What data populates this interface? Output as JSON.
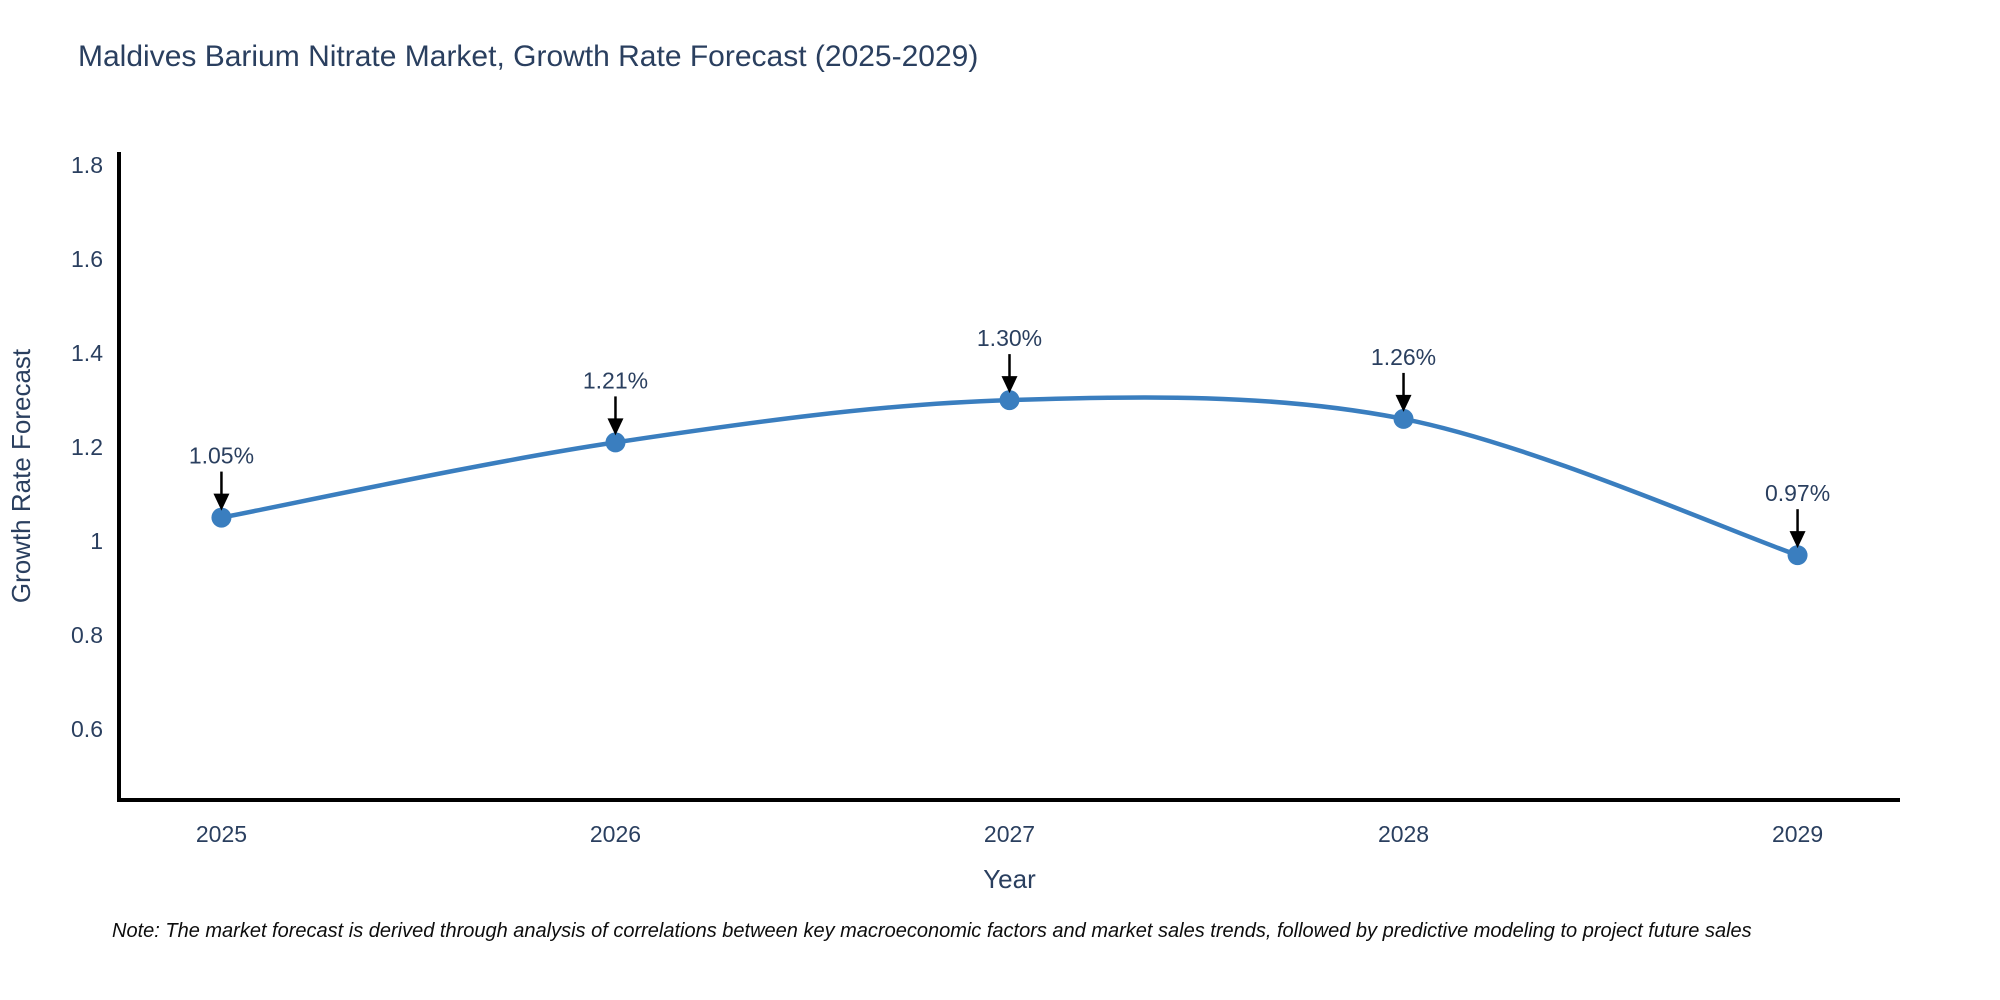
{
  "note": "Note: The market forecast is derived through analysis of correlations between key macroeconomic factors and market sales trends, followed by predictive modeling to project future sales",
  "chart_data": {
    "type": "line",
    "title": "Maldives Barium Nitrate Market, Growth Rate Forecast (2025-2029)",
    "xlabel": "Year",
    "ylabel": "Growth Rate Forecast",
    "categories": [
      "2025",
      "2026",
      "2027",
      "2028",
      "2029"
    ],
    "values": [
      1.05,
      1.21,
      1.3,
      1.26,
      0.97
    ],
    "point_labels": [
      "1.05%",
      "1.21%",
      "1.30%",
      "1.26%",
      "0.97%"
    ],
    "yticks": [
      1.8,
      1.6,
      1.4,
      1.2,
      1.0,
      0.8,
      0.6
    ],
    "ytick_labels": [
      "1.8",
      "1.6",
      "1.4",
      "1.2",
      "1",
      "0.8",
      "0.6"
    ],
    "ylim": [
      0.449,
      1.828
    ],
    "xlim": [
      2024.74,
      2029.26
    ],
    "line_shape": "spline",
    "grid": false,
    "legend_position": "none",
    "colors": {
      "line": "#3a7ebf",
      "marker": "#3a7ebf",
      "axis": "#000000",
      "text": "#2a3f5f",
      "annotation_text": "#2a3f5f",
      "arrow": "#000000",
      "background": "#ffffff"
    }
  }
}
